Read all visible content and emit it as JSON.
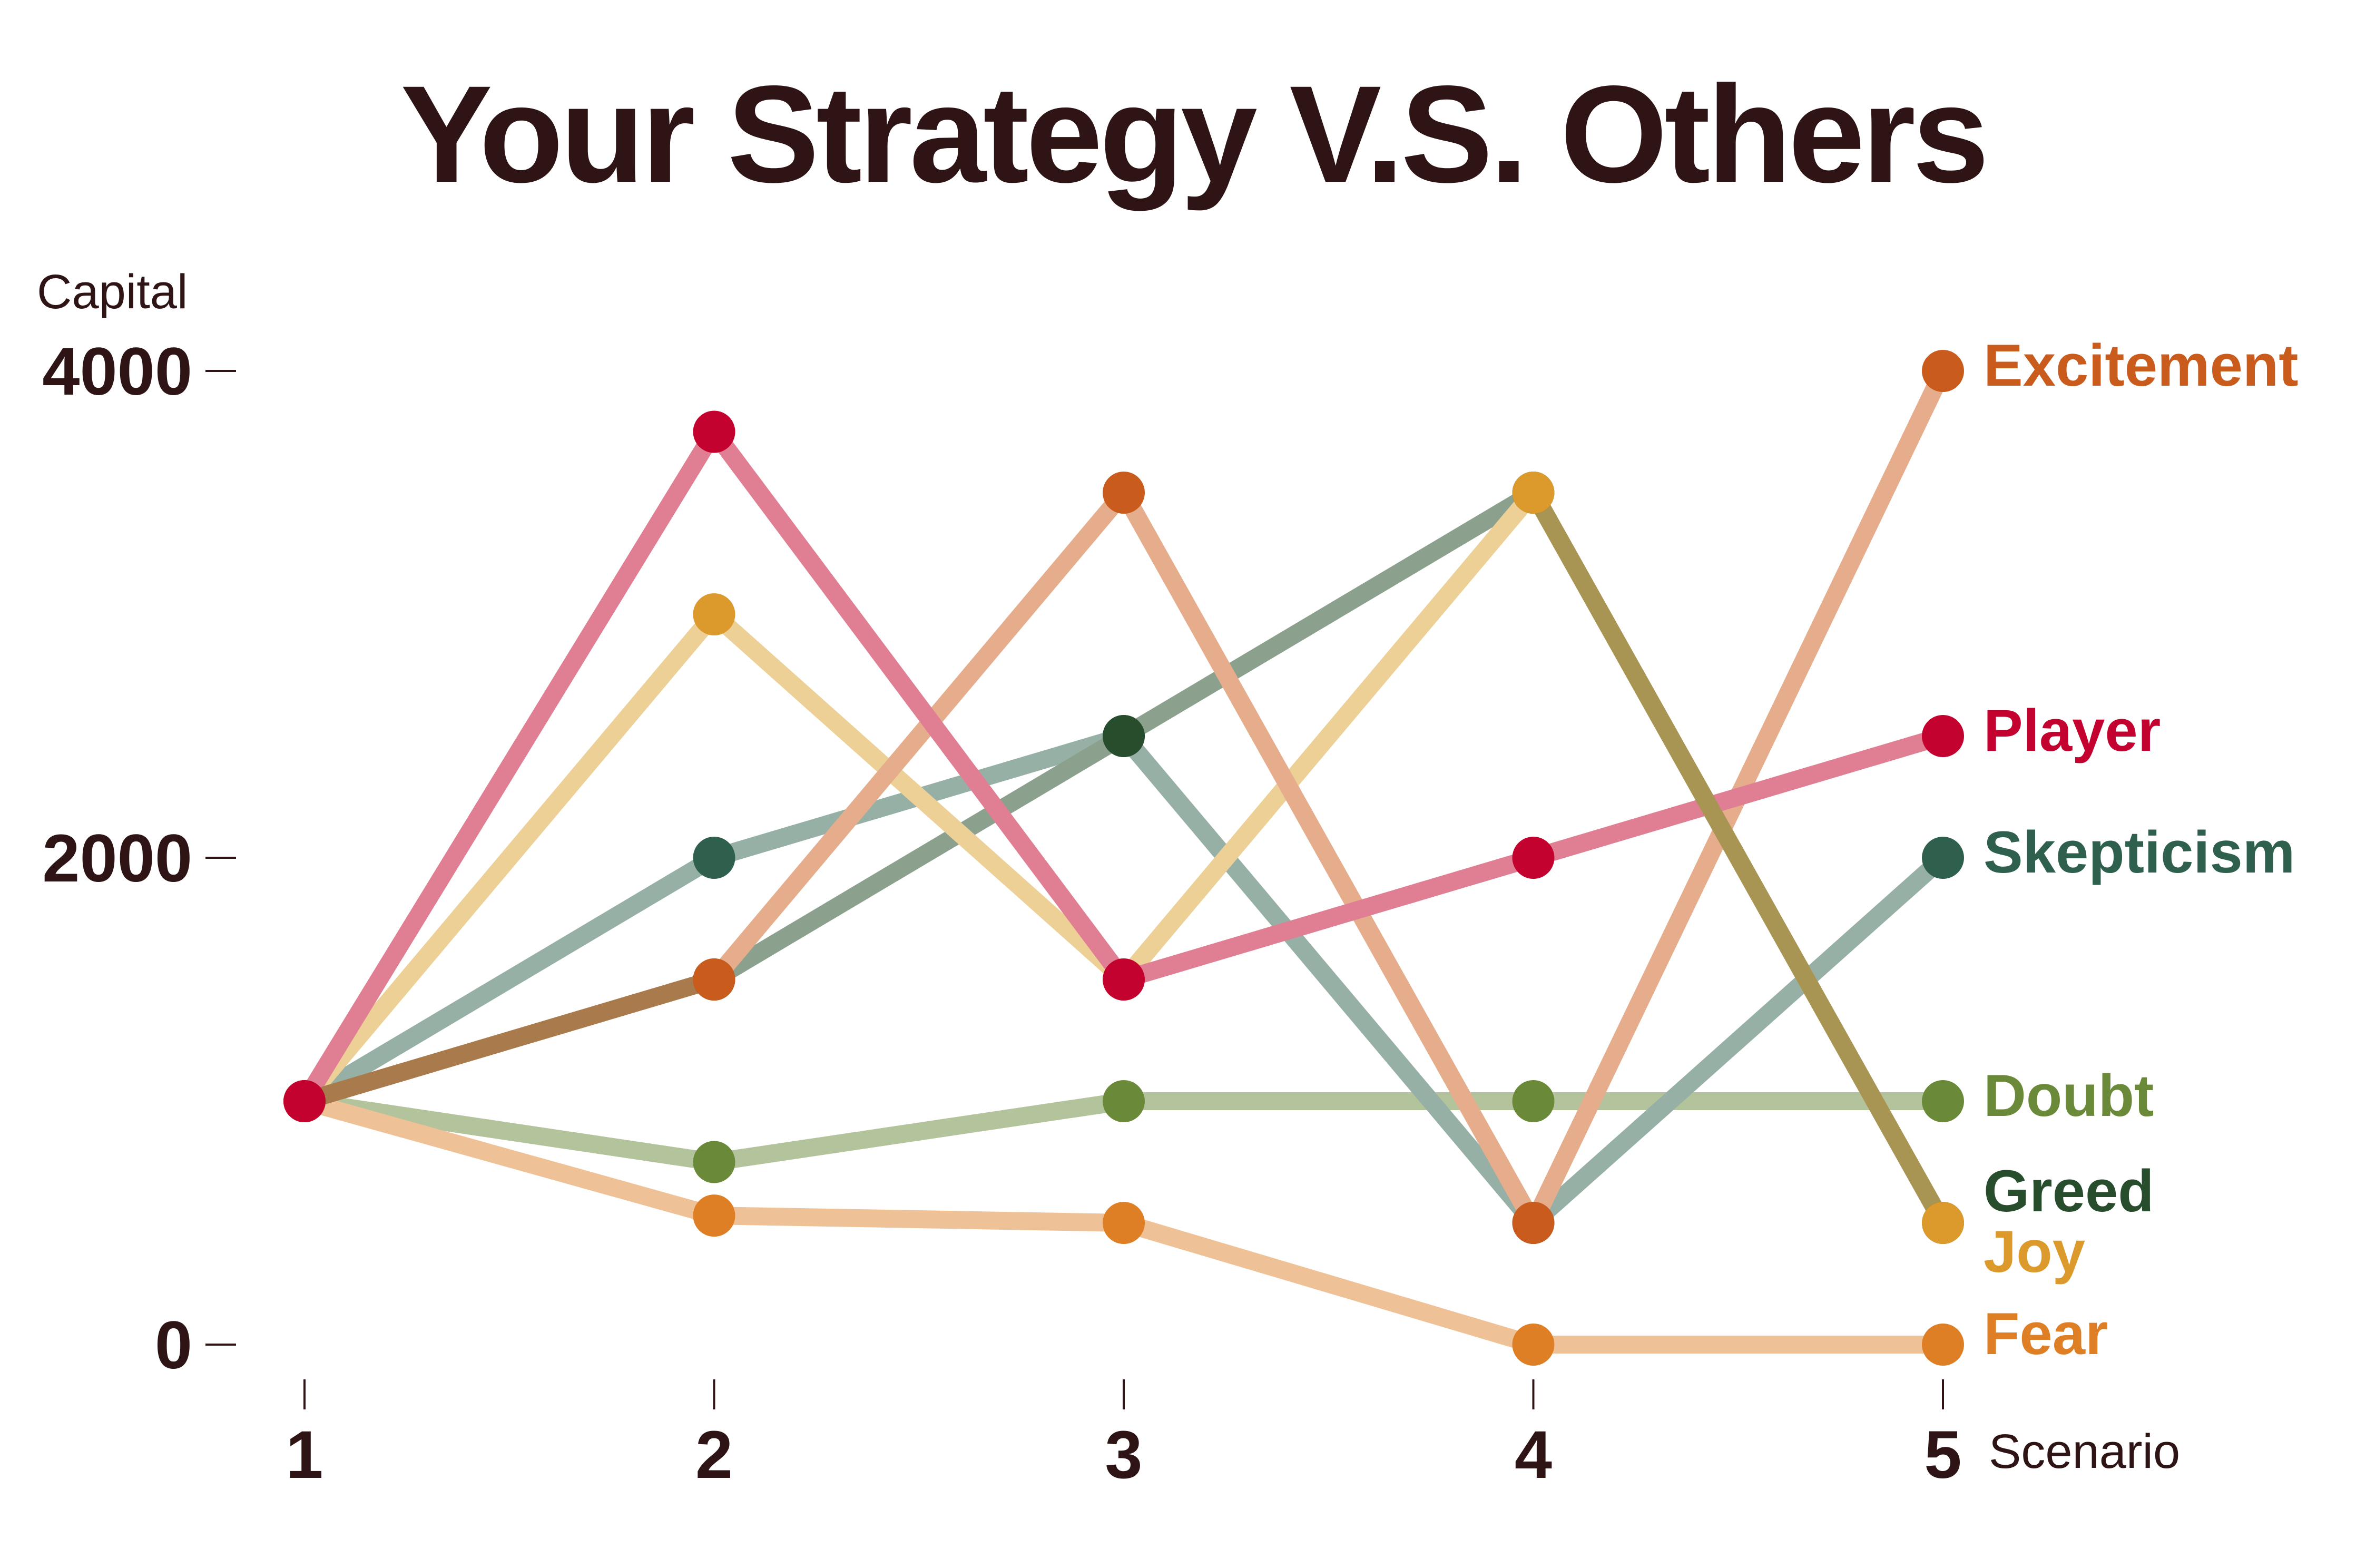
{
  "chart_data": {
    "type": "line",
    "title": "Your Strategy V.S. Others",
    "ylabel": "Capital",
    "xlabel": "Scenario",
    "x": [
      1,
      2,
      3,
      4,
      5
    ],
    "x_tick_labels": [
      "1",
      "2",
      "3",
      "4",
      "5"
    ],
    "y_ticks": [
      0,
      2000,
      4000
    ],
    "y_tick_labels": [
      "0",
      "2000",
      "4000"
    ],
    "ylim": [
      0,
      4000
    ],
    "grid": false,
    "legend": "direct labels at right end of each line",
    "series": [
      {
        "name": "Doubt",
        "values": [
          1000,
          750,
          1000,
          1000,
          1000
        ],
        "color": "#6a8a3a",
        "line_color": "#b3c39b",
        "label_color": "#6a8a3a"
      },
      {
        "name": "Fear",
        "values": [
          1000,
          530,
          500,
          0,
          0
        ],
        "color": "#de7f26",
        "line_color": "#efc196",
        "label_color": "#de7f26"
      },
      {
        "name": "Skepticism",
        "values": [
          1000,
          2000,
          2500,
          500,
          2000
        ],
        "color": "#2f604e",
        "line_color": "#97b0a6",
        "label_color": "#2f604e"
      },
      {
        "name": "Greed",
        "values": [
          1000,
          1500,
          2500,
          3500,
          500
        ],
        "color": "#284d2c",
        "line_color": "#8ca08e",
        "label_color": "#284d2c"
      },
      {
        "name": "Joy",
        "values": [
          1000,
          3000,
          1500,
          3500,
          500
        ],
        "color": "#dc9a2c",
        "line_color": "#ecd096",
        "label_color": "#dc9a2c"
      },
      {
        "name": "Excitement",
        "values": [
          1000,
          1500,
          3500,
          500,
          4000
        ],
        "color": "#c95b1d",
        "line_color": "#e6ad8c",
        "label_color": "#c95b1d"
      },
      {
        "name": "Player",
        "values": [
          1000,
          3750,
          1500,
          2000,
          2500
        ],
        "color": "#c4022f",
        "line_color": "#e07f93",
        "label_color": "#c4022f"
      }
    ],
    "overlap_colors": {
      "greed_joy_segment_4_5": "#a99553",
      "greed_excitement_segment_1_2": "#a97a4c"
    },
    "text_color": "#2e1414"
  }
}
